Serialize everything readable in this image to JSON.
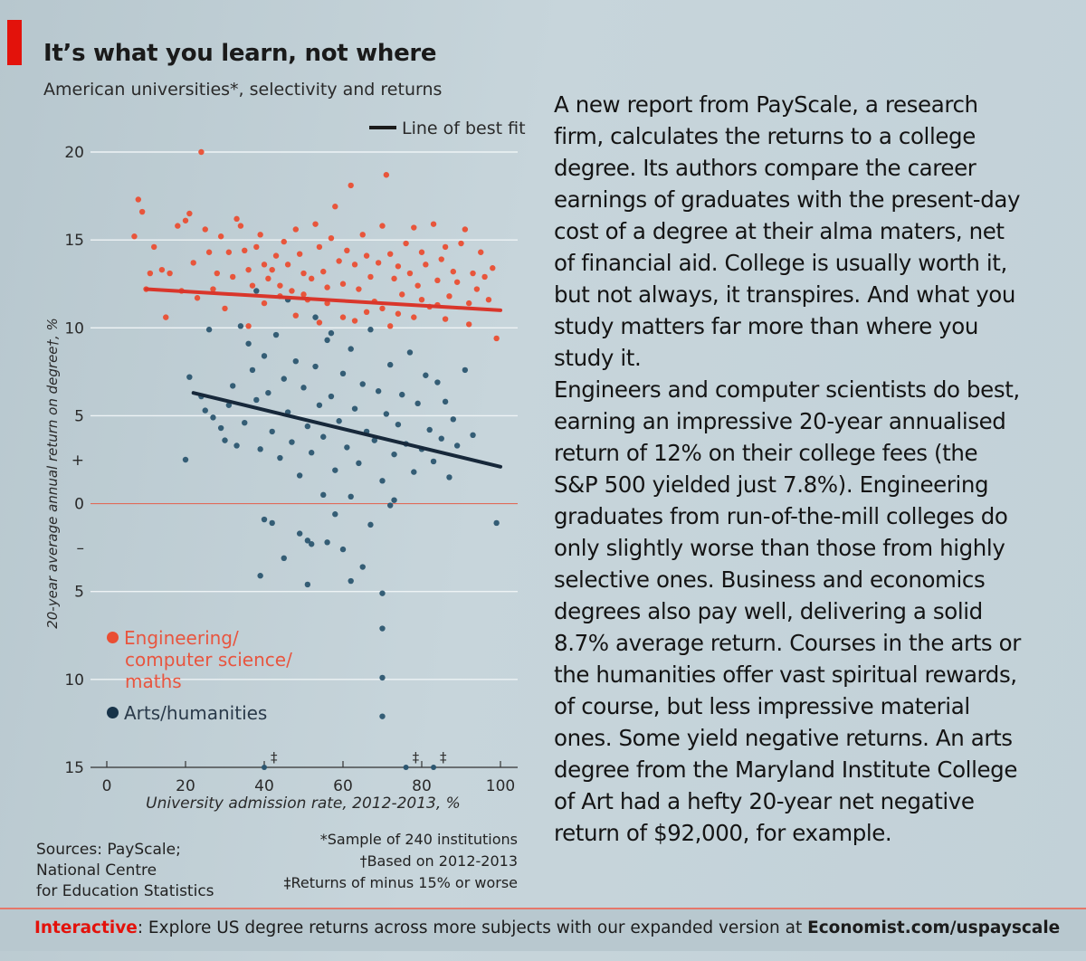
{
  "header": {
    "title": "It’s what you learn, not where",
    "subtitle": "American universities*, selectivity and returns"
  },
  "legend": {
    "fit_label": "Line of best fit",
    "engineering_line1": "Engineering/",
    "engineering_line2": "computer science/",
    "engineering_line3": "maths",
    "arts": "Arts/humanities"
  },
  "sources": "Sources: PayScale;\nNational Centre\nfor Education Statistics",
  "footnotes": {
    "line1": "*Sample of 240 institutions",
    "line2": "†Based on 2012-2013",
    "line3": "‡Returns of minus 15% or worse"
  },
  "article": {
    "paragraph1": "A new report from PayScale, a research firm, calculates the returns to a college degree. Its authors compare the career earnings of graduates with the present-day cost of a degree at their alma maters, net of financial aid. College is usually worth it, but not always, it transpires. And what you study matters far more than where you study it.",
    "paragraph2": "Engineers and computer scientists do best, earning an impressive 20-year annualised return of 12% on their college fees (the S&P 500 yielded just 7.8%). Engineering graduates from run-of-the-mill colleges do only slightly worse than those from highly selective ones. Business and economics degrees also pay well, delivering a solid 8.7% average return. Courses in the arts or the humanities offer vast spiritual rewards, of course, but less impressive material ones. Some yield negative returns. An arts degree from the Maryland Institute College of Art had a hefty 20-year net negative return of $92,000, for example."
  },
  "footer": {
    "lead": "Interactive",
    "text": ": Explore US degree returns across more subjects with our expanded version at ",
    "url": "Economist.com/uspayscale"
  },
  "chart_data": {
    "type": "scatter",
    "title": "It’s what you learn, not where",
    "subtitle": "American universities*, selectivity and returns",
    "xlabel": "University admission rate, 2012-2013, %",
    "ylabel": "20-year average annual return on degree†, %",
    "xlim": [
      0,
      100
    ],
    "ylim": [
      -15,
      20
    ],
    "x_ticks": [
      "0",
      "20",
      "40",
      "60",
      "80",
      "100"
    ],
    "y_ticks": [
      {
        "value": 20,
        "label": "20"
      },
      {
        "value": 15,
        "label": "15"
      },
      {
        "value": 10,
        "label": "10"
      },
      {
        "value": 5,
        "label": "5"
      },
      {
        "value": 2.5,
        "label": "+"
      },
      {
        "value": 0,
        "label": "0"
      },
      {
        "value": -2.5,
        "label": "–"
      },
      {
        "value": -5,
        "label": "5"
      },
      {
        "value": -10,
        "label": "10"
      },
      {
        "value": -15,
        "label": "15"
      }
    ],
    "grid": true,
    "colors": {
      "engineering": "#ea4e33",
      "arts": "#2c5670",
      "fit": "#1b1b1b",
      "zero_line": "#e06b5a"
    },
    "series": [
      {
        "name": "Engineering/computer science/maths",
        "points": [
          [
            8,
            17.3
          ],
          [
            7,
            15.2
          ],
          [
            9,
            16.6
          ],
          [
            12,
            14.6
          ],
          [
            11,
            13.1
          ],
          [
            14,
            13.3
          ],
          [
            16,
            13.1
          ],
          [
            18,
            15.8
          ],
          [
            19,
            12.1
          ],
          [
            20,
            16.1
          ],
          [
            21,
            16.5
          ],
          [
            22,
            13.7
          ],
          [
            23,
            11.7
          ],
          [
            25,
            15.6
          ],
          [
            26,
            14.3
          ],
          [
            27,
            12.2
          ],
          [
            28,
            13.1
          ],
          [
            29,
            15.2
          ],
          [
            30,
            11.1
          ],
          [
            31,
            14.3
          ],
          [
            32,
            12.9
          ],
          [
            33,
            16.2
          ],
          [
            34,
            15.8
          ],
          [
            35,
            14.4
          ],
          [
            36,
            13.3
          ],
          [
            37,
            12.4
          ],
          [
            38,
            14.6
          ],
          [
            39,
            15.3
          ],
          [
            40,
            13.6
          ],
          [
            41,
            12.8
          ],
          [
            42,
            13.3
          ],
          [
            43,
            14.1
          ],
          [
            44,
            11.8
          ],
          [
            45,
            14.9
          ],
          [
            46,
            13.6
          ],
          [
            47,
            12.1
          ],
          [
            48,
            15.6
          ],
          [
            49,
            14.2
          ],
          [
            50,
            13.1
          ],
          [
            51,
            11.6
          ],
          [
            52,
            12.8
          ],
          [
            53,
            15.9
          ],
          [
            54,
            14.6
          ],
          [
            55,
            13.2
          ],
          [
            56,
            12.3
          ],
          [
            57,
            15.1
          ],
          [
            58,
            16.9
          ],
          [
            59,
            13.8
          ],
          [
            60,
            12.5
          ],
          [
            61,
            14.4
          ],
          [
            62,
            18.1
          ],
          [
            63,
            13.6
          ],
          [
            64,
            12.2
          ],
          [
            65,
            15.3
          ],
          [
            66,
            14.1
          ],
          [
            67,
            12.9
          ],
          [
            68,
            11.5
          ],
          [
            69,
            13.7
          ],
          [
            70,
            15.8
          ],
          [
            71,
            18.7
          ],
          [
            72,
            14.2
          ],
          [
            73,
            12.8
          ],
          [
            74,
            13.5
          ],
          [
            75,
            11.9
          ],
          [
            76,
            14.8
          ],
          [
            77,
            13.1
          ],
          [
            78,
            15.7
          ],
          [
            79,
            12.4
          ],
          [
            80,
            14.3
          ],
          [
            81,
            13.6
          ],
          [
            82,
            11.2
          ],
          [
            83,
            15.9
          ],
          [
            84,
            12.7
          ],
          [
            85,
            13.9
          ],
          [
            86,
            14.6
          ],
          [
            87,
            11.8
          ],
          [
            88,
            13.2
          ],
          [
            89,
            12.6
          ],
          [
            90,
            14.8
          ],
          [
            91,
            15.6
          ],
          [
            92,
            11.4
          ],
          [
            93,
            13.1
          ],
          [
            94,
            12.2
          ],
          [
            95,
            14.3
          ],
          [
            96,
            12.9
          ],
          [
            97,
            11.6
          ],
          [
            98,
            13.4
          ],
          [
            99,
            9.4
          ],
          [
            24,
            20
          ],
          [
            10,
            12.2
          ],
          [
            15,
            10.6
          ],
          [
            36,
            10.1
          ],
          [
            48,
            10.7
          ],
          [
            56,
            11.4
          ],
          [
            63,
            10.4
          ],
          [
            70,
            11.1
          ],
          [
            74,
            10.8
          ],
          [
            80,
            11.6
          ],
          [
            86,
            10.5
          ],
          [
            92,
            10.2
          ],
          [
            60,
            10.6
          ],
          [
            66,
            10.9
          ],
          [
            50,
            11.9
          ],
          [
            44,
            12.4
          ],
          [
            40,
            11.4
          ],
          [
            54,
            10.3
          ],
          [
            72,
            10.1
          ],
          [
            78,
            10.6
          ],
          [
            84,
            11.3
          ]
        ]
      },
      {
        "name": "Arts/humanities",
        "points": [
          [
            20,
            2.5
          ],
          [
            21,
            7.2
          ],
          [
            24,
            6.1
          ],
          [
            25,
            5.3
          ],
          [
            27,
            4.9
          ],
          [
            29,
            4.3
          ],
          [
            30,
            3.6
          ],
          [
            31,
            5.6
          ],
          [
            32,
            6.7
          ],
          [
            33,
            3.3
          ],
          [
            35,
            4.6
          ],
          [
            36,
            9.1
          ],
          [
            37,
            7.6
          ],
          [
            38,
            5.9
          ],
          [
            39,
            3.1
          ],
          [
            40,
            8.4
          ],
          [
            41,
            6.3
          ],
          [
            42,
            4.1
          ],
          [
            43,
            9.6
          ],
          [
            44,
            2.6
          ],
          [
            45,
            7.1
          ],
          [
            46,
            5.2
          ],
          [
            47,
            3.5
          ],
          [
            48,
            8.1
          ],
          [
            49,
            1.6
          ],
          [
            50,
            6.6
          ],
          [
            51,
            4.4
          ],
          [
            52,
            2.9
          ],
          [
            53,
            7.8
          ],
          [
            54,
            5.6
          ],
          [
            55,
            3.8
          ],
          [
            56,
            9.3
          ],
          [
            57,
            6.1
          ],
          [
            58,
            1.9
          ],
          [
            59,
            4.7
          ],
          [
            60,
            7.4
          ],
          [
            61,
            3.2
          ],
          [
            62,
            8.8
          ],
          [
            63,
            5.4
          ],
          [
            64,
            2.3
          ],
          [
            65,
            6.8
          ],
          [
            66,
            4.1
          ],
          [
            67,
            9.9
          ],
          [
            68,
            3.6
          ],
          [
            69,
            6.4
          ],
          [
            70,
            1.3
          ],
          [
            71,
            5.1
          ],
          [
            72,
            7.9
          ],
          [
            73,
            2.8
          ],
          [
            74,
            4.5
          ],
          [
            75,
            6.2
          ],
          [
            76,
            3.4
          ],
          [
            77,
            8.6
          ],
          [
            78,
            1.8
          ],
          [
            79,
            5.7
          ],
          [
            80,
            3.1
          ],
          [
            81,
            7.3
          ],
          [
            82,
            4.2
          ],
          [
            83,
            2.4
          ],
          [
            84,
            6.9
          ],
          [
            85,
            3.7
          ],
          [
            86,
            5.8
          ],
          [
            87,
            1.5
          ],
          [
            88,
            4.8
          ],
          [
            89,
            3.3
          ],
          [
            91,
            7.6
          ],
          [
            93,
            3.9
          ],
          [
            55,
            0.5
          ],
          [
            58,
            -0.6
          ],
          [
            62,
            0.4
          ],
          [
            67,
            -1.2
          ],
          [
            72,
            -0.1
          ],
          [
            73,
            0.2
          ],
          [
            40,
            -0.9
          ],
          [
            42,
            -1.1
          ],
          [
            49,
            -1.7
          ],
          [
            51,
            -2.1
          ],
          [
            52,
            -2.3
          ],
          [
            56,
            -2.2
          ],
          [
            60,
            -2.6
          ],
          [
            45,
            -3.1
          ],
          [
            39,
            -4.1
          ],
          [
            51,
            -4.6
          ],
          [
            62,
            -4.4
          ],
          [
            65,
            -3.6
          ],
          [
            70,
            -5.1
          ],
          [
            70,
            -7.1
          ],
          [
            70,
            -9.9
          ],
          [
            70,
            -12.1
          ],
          [
            99,
            -1.1
          ],
          [
            26,
            9.9
          ],
          [
            34,
            10.1
          ],
          [
            38,
            12.1
          ],
          [
            46,
            11.6
          ],
          [
            53,
            10.6
          ],
          [
            57,
            9.7
          ]
        ]
      }
    ],
    "best_fit": [
      {
        "series": "Engineering/computer science/maths",
        "from": [
          10,
          12.2
        ],
        "to": [
          100,
          11.0
        ]
      },
      {
        "series": "Arts/humanities",
        "from": [
          22,
          6.3
        ],
        "to": [
          100,
          2.1
        ]
      }
    ],
    "below_range_markers": [
      {
        "x": 40,
        "label": "‡"
      },
      {
        "x": 76,
        "label": "‡"
      },
      {
        "x": 83,
        "label": "‡"
      }
    ]
  }
}
